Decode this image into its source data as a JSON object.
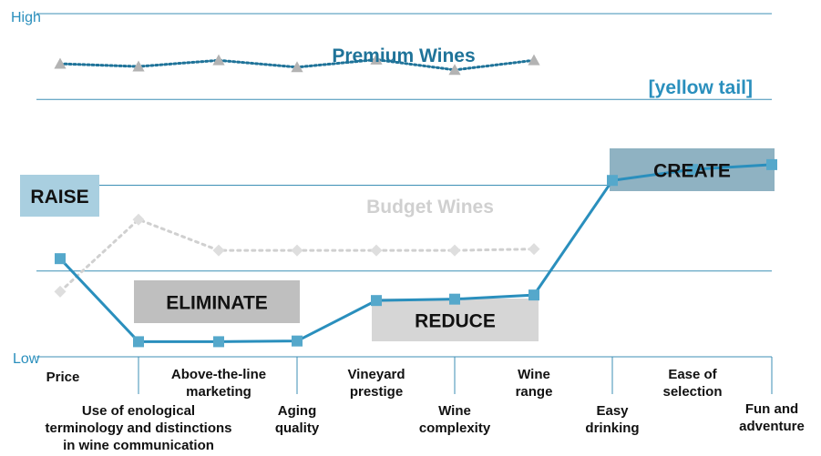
{
  "chart_data": {
    "type": "line",
    "title": "",
    "xlabel": "",
    "ylabel": "",
    "y_axis": {
      "high_label": "High",
      "low_label": "Low"
    },
    "ylim": [
      0,
      5
    ],
    "grid": true,
    "categories": [
      "Price",
      "Use of enological terminology and distinctions in wine communication",
      "Above-the-line marketing",
      "Aging quality",
      "Vineyard prestige",
      "Wine complexity",
      "Wine range",
      "Easy drinking",
      "Ease of selection",
      "Fun and adventure"
    ],
    "category_lines": [
      [
        "Price"
      ],
      [
        "Use of enological",
        "terminology and distinctions",
        "in wine communication"
      ],
      [
        "Above-the-line",
        "marketing"
      ],
      [
        "Aging",
        "quality"
      ],
      [
        "Vineyard",
        "prestige"
      ],
      [
        "Wine",
        "complexity"
      ],
      [
        "Wine",
        "range"
      ],
      [
        "Easy",
        "drinking"
      ],
      [
        "Ease of",
        "selection"
      ],
      [
        "Fun and",
        "adventure"
      ]
    ],
    "series": [
      {
        "name": "Premium Wines",
        "color": "#1f7399",
        "marker": "triangle",
        "values": [
          4.27,
          4.23,
          4.32,
          4.22,
          4.33,
          4.18,
          4.32,
          null,
          null,
          null
        ]
      },
      {
        "name": "Budget Wines",
        "color": "#d0d0d0",
        "marker": "diamond",
        "values": [
          0.95,
          2.0,
          1.55,
          1.55,
          1.55,
          1.55,
          1.57,
          null,
          null,
          null
        ]
      },
      {
        "name": "[yellow tail]",
        "color": "#2a8fbd",
        "marker": "square",
        "values": [
          1.43,
          0.22,
          0.22,
          0.23,
          0.82,
          0.84,
          0.9,
          2.57,
          2.73,
          2.8
        ]
      }
    ],
    "annotations": [
      {
        "text": "RAISE",
        "color": "#a9cfe0"
      },
      {
        "text": "ELIMINATE",
        "color": "#bfbfbf"
      },
      {
        "text": "REDUCE",
        "color": "#d6d6d6"
      },
      {
        "text": "CREATE",
        "color": "#8fb2c2"
      }
    ]
  }
}
